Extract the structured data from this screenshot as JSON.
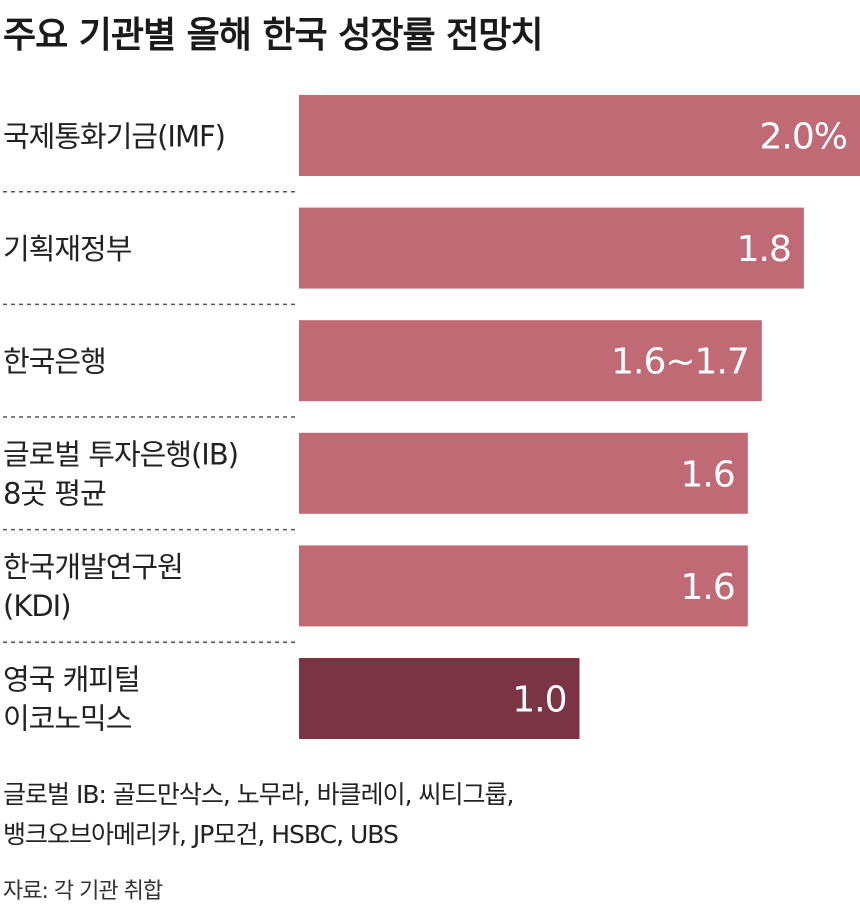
{
  "chart_data": {
    "type": "bar",
    "orientation": "horizontal",
    "title": "주요 기관별 올해 한국 성장률 전망치",
    "categories": [
      [
        "국제통화기금(IMF)"
      ],
      [
        "기획재정부"
      ],
      [
        "한국은행"
      ],
      [
        "글로벌 투자은행(IB)",
        "8곳 평균"
      ],
      [
        "한국개발연구원",
        "(KDI)"
      ],
      [
        "영국 캐피털",
        "이코노믹스"
      ]
    ],
    "values": [
      2.0,
      1.8,
      1.65,
      1.6,
      1.6,
      1.0
    ],
    "value_labels": [
      "2.0%",
      "1.8",
      "1.6~1.7",
      "1.6",
      "1.6",
      "1.0"
    ],
    "bar_colors": [
      "#bf6a75",
      "#bf6a75",
      "#bf6a75",
      "#bf6a75",
      "#bf6a75",
      "#7a3444"
    ],
    "xlim": [
      0,
      2.0
    ],
    "grid": false,
    "legend": "none"
  },
  "notes": [
    "글로벌 IB: 골드만삭스, 노무라, 바클레이, 씨티그룹,",
    "뱅크오브아메리카, JP모건, HSBC, UBS"
  ],
  "source": "자료: 각 기관 취합"
}
